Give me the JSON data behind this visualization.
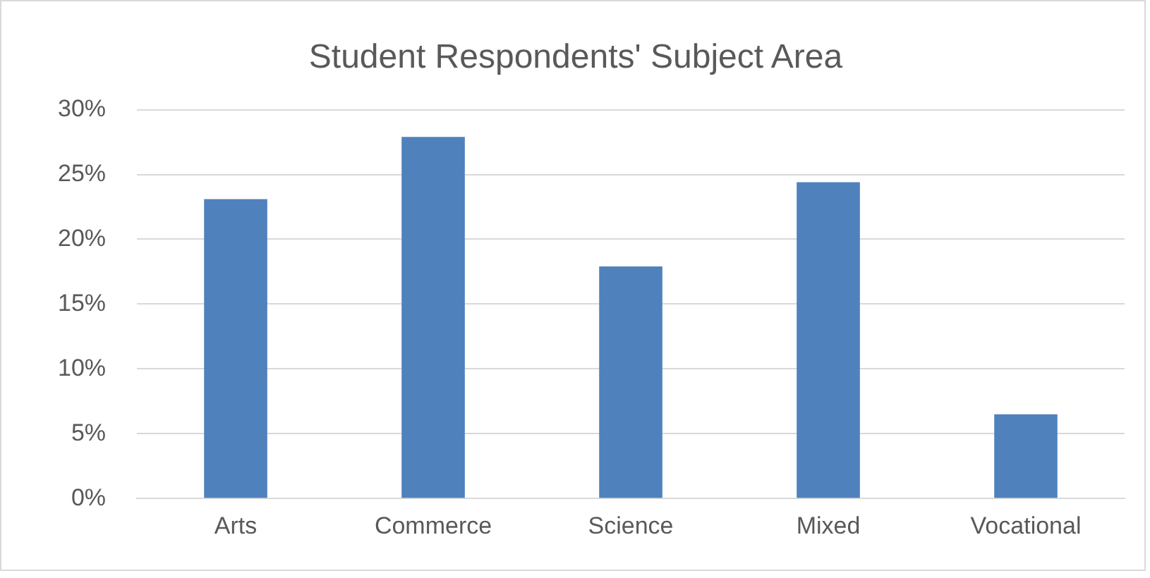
{
  "chart_data": {
    "type": "bar",
    "title": "Student Respondents' Subject Area",
    "categories": [
      "Arts",
      "Commerce",
      "Science",
      "Mixed",
      "Vocational"
    ],
    "values": [
      23.1,
      27.9,
      17.9,
      24.4,
      6.5
    ],
    "color": "#4f81bd",
    "ylim": [
      0,
      30
    ],
    "yticks": [
      {
        "value": 0,
        "label": "0%"
      },
      {
        "value": 5,
        "label": "5%"
      },
      {
        "value": 10,
        "label": "10%"
      },
      {
        "value": 15,
        "label": "15%"
      },
      {
        "value": 20,
        "label": "20%"
      },
      {
        "value": 25,
        "label": "25%"
      },
      {
        "value": 30,
        "label": "30%"
      }
    ],
    "grid": "y",
    "legend": false
  }
}
